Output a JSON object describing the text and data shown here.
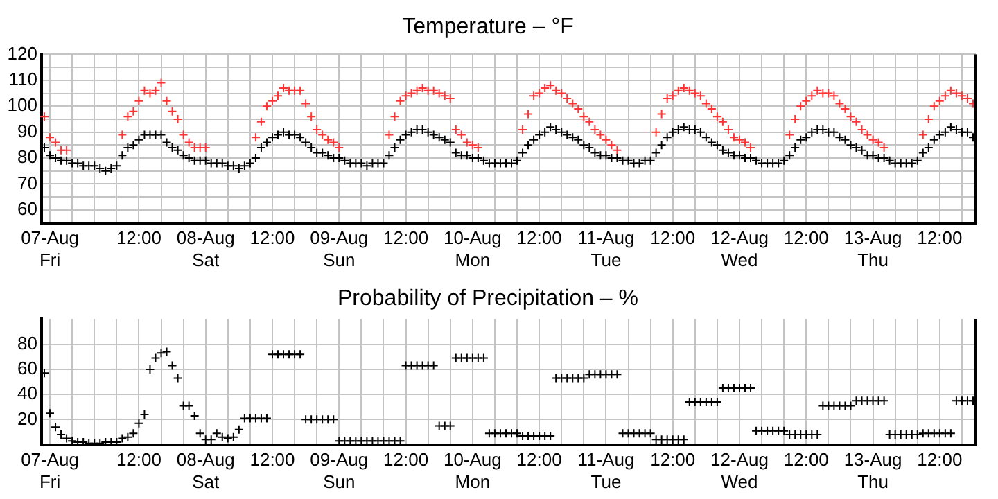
{
  "chart_data": [
    {
      "type": "scatter",
      "title": "Temperature – °F",
      "marker": "cross",
      "grid": true,
      "legend": false,
      "categories": [
        null,
        "07-Aug\nFri",
        null,
        null,
        null,
        null,
        null,
        null,
        null,
        null,
        null,
        null,
        null,
        null,
        null,
        null,
        null,
        "12:00",
        null,
        null,
        null,
        null,
        null,
        null,
        null,
        null,
        null,
        null,
        null,
        "08-Aug\nSat",
        null,
        null,
        null,
        null,
        null,
        null,
        null,
        null,
        null,
        null,
        null,
        "12:00",
        null,
        null,
        null,
        null,
        null,
        null,
        null,
        null,
        null,
        null,
        null,
        "09-Aug\nSun",
        null,
        null,
        null,
        null,
        null,
        null,
        null,
        null,
        null,
        null,
        null,
        "12:00",
        null,
        null,
        null,
        null,
        null,
        null,
        null,
        null,
        null,
        null,
        null,
        "10-Aug\nMon",
        null,
        null,
        null,
        null,
        null,
        null,
        null,
        null,
        null,
        null,
        null,
        "12:00",
        null,
        null,
        null,
        null,
        null,
        null,
        null,
        null,
        null,
        null,
        null,
        "11-Aug\nTue",
        null,
        null,
        null,
        null,
        null,
        null,
        null,
        null,
        null,
        null,
        null,
        "12:00",
        null,
        null,
        null,
        null,
        null,
        null,
        null,
        null,
        null,
        null,
        null,
        "12-Aug\nWed",
        null,
        null,
        null,
        null,
        null,
        null,
        null,
        null,
        null,
        null,
        null,
        "12:00",
        null,
        null,
        null,
        null,
        null,
        null,
        null,
        null,
        null,
        null,
        null,
        "13-Aug\nThu",
        null,
        null,
        null,
        null,
        null,
        null,
        null,
        null,
        null,
        null,
        null,
        "12:00",
        null,
        null,
        null,
        null,
        null,
        null
      ],
      "ylim": [
        55,
        120
      ],
      "yticks": [
        60,
        {
          "value": 65,
          "label": null
        },
        70,
        {
          "value": 75,
          "label": null
        },
        80,
        {
          "value": 85,
          "label": null
        },
        90,
        {
          "value": 95,
          "label": null
        },
        100,
        {
          "value": 105,
          "label": null
        },
        110,
        {
          "value": 115,
          "label": null
        },
        120
      ],
      "series": [
        {
          "color": "#000000",
          "values": [
            84,
            81,
            80,
            79,
            79,
            78,
            78,
            77,
            77,
            77,
            76,
            75,
            76,
            77,
            81,
            84,
            85,
            87,
            89,
            89,
            89,
            89,
            86,
            84,
            83,
            81,
            80,
            79,
            79,
            79,
            78,
            78,
            78,
            77,
            77,
            76,
            77,
            78,
            80,
            84,
            86,
            88,
            89,
            90,
            89,
            89,
            88,
            86,
            84,
            82,
            82,
            81,
            80,
            80,
            79,
            78,
            78,
            78,
            77,
            78,
            78,
            78,
            81,
            84,
            87,
            89,
            90,
            91,
            91,
            90,
            89,
            88,
            87,
            86,
            82,
            81,
            81,
            80,
            80,
            79,
            78,
            78,
            78,
            78,
            78,
            79,
            82,
            85,
            87,
            89,
            90,
            92,
            91,
            90,
            89,
            88,
            87,
            85,
            84,
            82,
            81,
            81,
            80,
            80,
            79,
            79,
            78,
            78,
            79,
            79,
            82,
            85,
            88,
            90,
            91,
            92,
            91,
            91,
            90,
            88,
            86,
            85,
            83,
            82,
            81,
            81,
            80,
            80,
            79,
            78,
            78,
            78,
            78,
            79,
            81,
            84,
            87,
            88,
            90,
            91,
            91,
            90,
            90,
            88,
            87,
            85,
            84,
            83,
            81,
            81,
            80,
            80,
            79,
            78,
            78,
            78,
            78,
            79,
            82,
            84,
            87,
            89,
            90,
            92,
            91,
            90,
            90,
            88
          ]
        },
        {
          "color": "#ff3333",
          "values": [
            96,
            88,
            86,
            83,
            83,
            null,
            null,
            null,
            null,
            null,
            null,
            null,
            null,
            null,
            89,
            96,
            98,
            102,
            106,
            105,
            106,
            109,
            102,
            98,
            95,
            89,
            86,
            84,
            84,
            84,
            null,
            null,
            null,
            null,
            null,
            null,
            null,
            null,
            88,
            94,
            100,
            102,
            104,
            107,
            106,
            106,
            106,
            101,
            96,
            91,
            89,
            87,
            86,
            84,
            null,
            null,
            null,
            null,
            null,
            null,
            null,
            null,
            89,
            96,
            102,
            104,
            105,
            106,
            107,
            106,
            106,
            105,
            104,
            103,
            91,
            89,
            86,
            85,
            84,
            null,
            null,
            null,
            null,
            null,
            null,
            null,
            91,
            97,
            104,
            105,
            107,
            108,
            106,
            105,
            103,
            101,
            99,
            96,
            94,
            91,
            89,
            87,
            85,
            83,
            null,
            null,
            null,
            null,
            null,
            null,
            90,
            97,
            103,
            104,
            106,
            107,
            106,
            105,
            104,
            101,
            99,
            96,
            94,
            91,
            88,
            87,
            86,
            84,
            null,
            null,
            null,
            null,
            null,
            null,
            89,
            95,
            100,
            102,
            104,
            106,
            105,
            105,
            104,
            101,
            99,
            96,
            94,
            91,
            89,
            87,
            86,
            84,
            null,
            null,
            null,
            null,
            null,
            null,
            89,
            95,
            100,
            102,
            104,
            106,
            105,
            104,
            103,
            101
          ]
        }
      ]
    },
    {
      "type": "scatter",
      "title": "Probability of Precipitation – %",
      "marker": "cross",
      "grid": true,
      "legend": false,
      "categories": [
        null,
        "07-Aug\nFri",
        null,
        null,
        null,
        null,
        null,
        null,
        null,
        null,
        null,
        null,
        null,
        null,
        null,
        null,
        null,
        "12:00",
        null,
        null,
        null,
        null,
        null,
        null,
        null,
        null,
        null,
        null,
        null,
        "08-Aug\nSat",
        null,
        null,
        null,
        null,
        null,
        null,
        null,
        null,
        null,
        null,
        null,
        "12:00",
        null,
        null,
        null,
        null,
        null,
        null,
        null,
        null,
        null,
        null,
        null,
        "09-Aug\nSun",
        null,
        null,
        null,
        null,
        null,
        null,
        null,
        null,
        null,
        null,
        null,
        "12:00",
        null,
        null,
        null,
        null,
        null,
        null,
        null,
        null,
        null,
        null,
        null,
        "10-Aug\nMon",
        null,
        null,
        null,
        null,
        null,
        null,
        null,
        null,
        null,
        null,
        null,
        "12:00",
        null,
        null,
        null,
        null,
        null,
        null,
        null,
        null,
        null,
        null,
        null,
        "11-Aug\nTue",
        null,
        null,
        null,
        null,
        null,
        null,
        null,
        null,
        null,
        null,
        null,
        "12:00",
        null,
        null,
        null,
        null,
        null,
        null,
        null,
        null,
        null,
        null,
        null,
        "12-Aug\nWed",
        null,
        null,
        null,
        null,
        null,
        null,
        null,
        null,
        null,
        null,
        null,
        "12:00",
        null,
        null,
        null,
        null,
        null,
        null,
        null,
        null,
        null,
        null,
        null,
        "13-Aug\nThu",
        null,
        null,
        null,
        null,
        null,
        null,
        null,
        null,
        null,
        null,
        null,
        "12:00",
        null,
        null,
        null,
        null,
        null,
        null
      ],
      "ylim": [
        0,
        100
      ],
      "yticks": [
        20,
        40,
        60,
        80
      ],
      "series": [
        {
          "color": "#000000",
          "values": [
            57,
            25,
            14,
            8,
            5,
            3,
            2,
            2,
            1,
            1,
            1,
            2,
            2,
            2,
            5,
            6,
            9,
            17,
            24,
            60,
            69,
            73,
            74,
            63,
            53,
            31,
            31,
            23,
            9,
            4,
            4,
            9,
            6,
            5,
            6,
            12,
            21,
            21,
            21,
            21,
            21,
            72,
            72,
            72,
            72,
            72,
            72,
            20,
            20,
            20,
            20,
            20,
            20,
            3,
            3,
            3,
            3,
            3,
            3,
            3,
            3,
            3,
            3,
            3,
            3,
            63,
            63,
            63,
            63,
            63,
            63,
            15,
            15,
            15,
            69,
            69,
            69,
            69,
            69,
            69,
            9,
            9,
            9,
            9,
            9,
            9,
            7,
            7,
            7,
            7,
            7,
            7,
            53,
            53,
            53,
            53,
            53,
            53,
            56,
            56,
            56,
            56,
            56,
            56,
            9,
            9,
            9,
            9,
            9,
            9,
            4,
            4,
            4,
            4,
            4,
            4,
            34,
            34,
            34,
            34,
            34,
            34,
            45,
            45,
            45,
            45,
            45,
            45,
            11,
            11,
            11,
            11,
            11,
            11,
            8,
            8,
            8,
            8,
            8,
            8,
            31,
            31,
            31,
            31,
            31,
            31,
            35,
            35,
            35,
            35,
            35,
            35,
            8,
            8,
            8,
            8,
            8,
            8,
            9,
            9,
            9,
            9,
            9,
            9,
            35,
            35,
            35,
            35
          ]
        }
      ]
    }
  ]
}
